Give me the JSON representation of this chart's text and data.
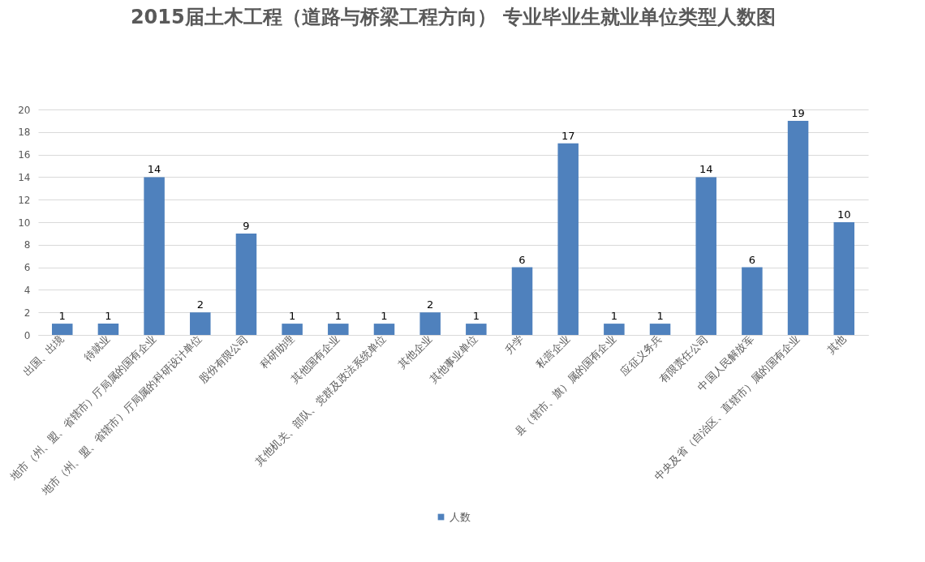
{
  "chart_data": {
    "type": "bar",
    "title": "2015届土木工程（道路与桥梁工程方向） 专业毕业生就业单位类型人数图",
    "categories": [
      "出国、出境",
      "待就业",
      "地市（州、盟、省辖市）厅局属的国有企业",
      "地市（州、盟、省辖市）厅局属的科研设计单位",
      "股份有限公司",
      "科研助理",
      "其他国有企业",
      "其他机关、部队、党群及政法系统单位",
      "其他企业",
      "其他事业单位",
      "升学",
      "私营企业",
      "县（辖市、旗）属的国有企业",
      "应征义务兵",
      "有限责任公司",
      "中国人民解放军",
      "中央及省（自治区、直辖市）属的国有企业",
      "其他"
    ],
    "series": [
      {
        "name": "人数",
        "color": "#4f81bd",
        "values": [
          1,
          1,
          14,
          2,
          9,
          1,
          1,
          1,
          2,
          1,
          6,
          17,
          1,
          1,
          14,
          6,
          19,
          10
        ]
      }
    ],
    "ylim": [
      0,
      20
    ],
    "yticks": [
      0,
      2,
      4,
      6,
      8,
      10,
      12,
      14,
      16,
      18,
      20
    ],
    "grid": "y",
    "legend": "bottom",
    "data_labels": true
  }
}
